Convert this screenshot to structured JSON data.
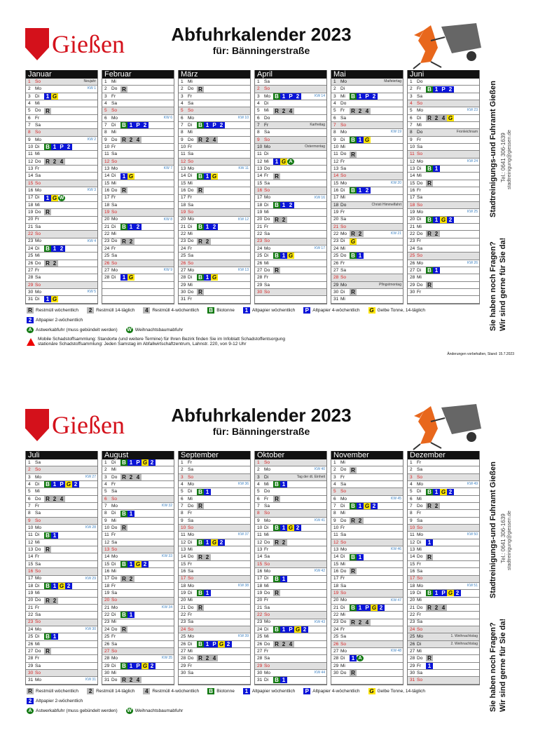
{
  "header": {
    "logo_text": "Gießen",
    "title": "Abfuhrkalender 2023",
    "subtitle": "für: Bänningerstraße"
  },
  "weekdays": [
    "Mo",
    "Di",
    "Mi",
    "Do",
    "Fr",
    "Sa",
    "So"
  ],
  "kw_prefix": "KW",
  "badge_text": {
    "R": "R",
    "2g": "2",
    "4g": "4",
    "B": "B",
    "1": "1",
    "P": "P",
    "G": "G",
    "2b": "2",
    "A": "A",
    "W": "W"
  },
  "months": [
    {
      "name": "Januar",
      "days": 31,
      "start": 6,
      "kw": {
        "2": 1,
        "9": 2,
        "16": 3,
        "23": 4,
        "30": 5
      },
      "holidays": {
        "1": "Neujahr"
      },
      "events": {
        "3": "1 G",
        "5": "R",
        "10": "B 1 P 2b",
        "12": "R 2g 4g",
        "17": "1 G W",
        "19": "R",
        "24": "B 1 2b",
        "26": "R 2g",
        "31": "1 G"
      }
    },
    {
      "name": "Februar",
      "days": 28,
      "start": 2,
      "kw": {
        "6": 6,
        "13": 7,
        "20": 8,
        "27": 9
      },
      "holidays": {},
      "events": {
        "2": "R",
        "7": "B 1 P 2b",
        "9": "R 2g 4g",
        "14": "1 G",
        "16": "R",
        "21": "B 1 2b",
        "23": "R 2g",
        "28": "1 G"
      }
    },
    {
      "name": "März",
      "days": 31,
      "start": 2,
      "kw": {
        "6": 10,
        "13": 11,
        "20": 12,
        "27": 13
      },
      "holidays": {},
      "events": {
        "2": "R",
        "7": "B 1 P 2b",
        "9": "R 2g 4g",
        "14": "B 1 G",
        "16": "R",
        "21": "B 1 2b",
        "23": "R 2g",
        "28": "B 1 G",
        "30": "R"
      }
    },
    {
      "name": "April",
      "days": 30,
      "start": 5,
      "kw": {
        "3": 14,
        "17": 16,
        "24": 17
      },
      "holidays": {
        "7": "Karfreitag",
        "10": "Ostermontag"
      },
      "events": {
        "3": "B 1 P 2b",
        "5": "R 2g 4g",
        "12": "1 G A",
        "14": "R",
        "18": "B 1 2b",
        "20": "R 2g",
        "25": "B 1 G",
        "27": "R"
      }
    },
    {
      "name": "Mai",
      "days": 31,
      "start": 0,
      "kw": {
        "8": 19,
        "15": 20,
        "22": 21
      },
      "holidays": {
        "1": "Maifeiertag",
        "18": "Christi Himmelfahrt",
        "29": "Pfingstmontag"
      },
      "events": {
        "3": "B 1 P 2b",
        "5": "R 2g 4g",
        "9": "B 1 G",
        "11": "R",
        "16": "B 1 2b",
        "22": "R 2g",
        "23": "G",
        "25": "B 1",
        "30": "R"
      }
    },
    {
      "name": "Juni",
      "days": 30,
      "start": 3,
      "kw": {
        "5": 23,
        "12": 24,
        "19": 25,
        "26": 26
      },
      "holidays": {
        "8": "Fronleichnam"
      },
      "events": {
        "2": "B 1 P 2b",
        "6": "R 2g 4g G",
        "13": "B 1",
        "15": "R",
        "20": "B 1 G 2b",
        "22": "R 2g",
        "27": "B 1",
        "29": "R"
      }
    },
    {
      "name": "Juli",
      "days": 31,
      "start": 5,
      "kw": {
        "3": 27,
        "10": 28,
        "17": 29,
        "24": 30,
        "31": 31
      },
      "holidays": {},
      "events": {
        "4": "B 1 P G 2b",
        "6": "R 2g 4g",
        "11": "B 1",
        "13": "R",
        "18": "B 1 G 2b",
        "20": "R 2g",
        "25": "B 1",
        "27": "R"
      }
    },
    {
      "name": "August",
      "days": 31,
      "start": 1,
      "kw": {
        "7": 32,
        "14": 33,
        "21": 34,
        "28": 35
      },
      "holidays": {},
      "events": {
        "1": "B 1 P G 2b",
        "3": "R 2g 4g",
        "8": "B 1",
        "10": "R",
        "15": "B 1 G 2b",
        "17": "R 2g",
        "22": "B 1",
        "24": "R",
        "29": "B 1 P G 2b",
        "31": "R 2g 4g"
      }
    },
    {
      "name": "September",
      "days": 30,
      "start": 4,
      "kw": {
        "4": 36,
        "11": 37,
        "18": 38,
        "25": 39
      },
      "holidays": {},
      "events": {
        "5": "B 1",
        "7": "R",
        "12": "B 1 G 2b",
        "14": "R 2g",
        "19": "B 1",
        "21": "R",
        "26": "B 1 P G 2b",
        "28": "R 2g 4g"
      }
    },
    {
      "name": "Oktober",
      "days": 31,
      "start": 6,
      "kw": {
        "2": 40,
        "9": 41,
        "16": 42,
        "23": 43,
        "30": 44
      },
      "holidays": {
        "3": "Tag der dt. Einheit"
      },
      "events": {
        "4": "B 1",
        "6": "R",
        "10": "B 1 G 2b",
        "12": "R 2g",
        "17": "B 1",
        "19": "R",
        "24": "B 1 P G 2b",
        "26": "R 2g 4g",
        "31": "B 1"
      }
    },
    {
      "name": "November",
      "days": 30,
      "start": 2,
      "kw": {
        "6": 45,
        "13": 46,
        "20": 47,
        "27": 48
      },
      "holidays": {},
      "events": {
        "2": "R",
        "7": "B 1 G 2b",
        "9": "R 2g",
        "14": "B 1",
        "16": "R",
        "21": "B 1 P G 2b",
        "23": "R 2g 4g",
        "28": "1 A",
        "30": "R"
      }
    },
    {
      "name": "Dezember",
      "days": 31,
      "start": 4,
      "kw": {
        "4": 49,
        "11": 50,
        "18": 51
      },
      "holidays": {
        "25": "1. Weihnachtstag",
        "26": "2. Weihnachtstag"
      },
      "events": {
        "5": "B 1 G 2b",
        "7": "R 2g",
        "12": "1",
        "14": "R",
        "19": "B 1 P G 2b",
        "21": "R 2g 4g",
        "28": "R",
        "29": "1"
      }
    }
  ],
  "legend": {
    "items": [
      {
        "code": "R",
        "label": "Restmüll wöchentlich"
      },
      {
        "code": "2g",
        "label": "Restmüll 14-täglich"
      },
      {
        "code": "4g",
        "label": "Restmüll 4-wöchentlich"
      },
      {
        "code": "B",
        "label": "Biotonne"
      },
      {
        "code": "1",
        "label": "Altpapier wöchentlich"
      },
      {
        "code": "P",
        "label": "Altpapier 4-wöchentlich"
      },
      {
        "code": "G",
        "label": "Gelbe Tonne, 14-täglich"
      },
      {
        "code": "2b",
        "label": "Altpapier 2-wöchentlich"
      },
      {
        "code": "A",
        "label": "Astwerkabfuhr (muss gebündelt werden)"
      },
      {
        "code": "W",
        "label": "Weihnachtsbaumabfuhr"
      }
    ],
    "mobile": "Mobile Schadstoffsammlung: Standorte (und weitere Termine) für Ihren Bezirk finden Sie im Infoblatt Schadstoffentsorgung",
    "stationary": "stationäre Schadstoffsammlung: Jeden Samstag im Abfallwirtschaftzentrum, Lahnstr. 220, von 9-12 Uhr",
    "stand": "Änderungen vorbehalten, Stand: 15.7.2023"
  },
  "contact": {
    "questions": "Sie haben noch Fragen?",
    "help": "Wir sind gerne für Sie da!",
    "org": "Stadtreinigungs-und Fuhramt Gießen",
    "tel": "Tel.: 0641 306-1639",
    "email": "stadtreinigung@giessen.de"
  }
}
